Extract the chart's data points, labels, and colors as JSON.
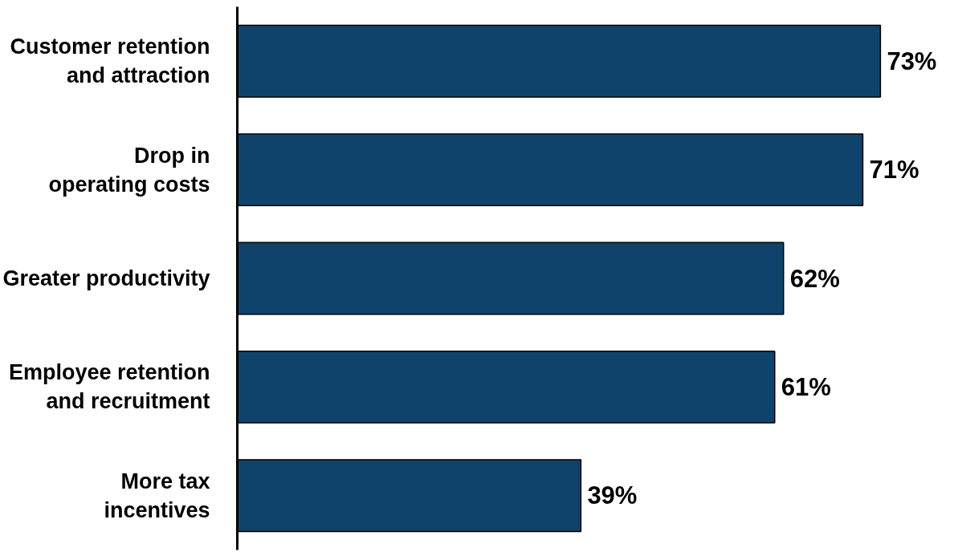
{
  "chart_data": {
    "type": "bar",
    "orientation": "horizontal",
    "categories": [
      "Customer retention\nand attraction",
      "Drop in\noperating costs",
      "Greater productivity",
      "Employee retention\nand recruitment",
      "More tax\nincentives"
    ],
    "values": [
      73,
      71,
      62,
      61,
      39
    ],
    "color": "#10436b",
    "value_labels": [
      "73%",
      "71%",
      "62%",
      "61%",
      "39%"
    ],
    "grid": false
  }
}
